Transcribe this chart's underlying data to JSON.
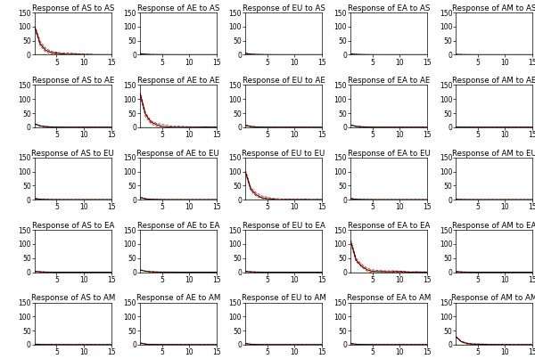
{
  "regions": [
    "AS",
    "AE",
    "EU",
    "EA",
    "AM"
  ],
  "xlim": [
    1,
    15
  ],
  "ylim": [
    0,
    150
  ],
  "yticks": [
    0,
    50,
    100,
    150
  ],
  "xticks": [
    5,
    10,
    15
  ],
  "background_color": "#ffffff",
  "line_color_main": "#000000",
  "line_color_upper": "#ff0000",
  "line_color_lower": "#ff0000",
  "line_color_zero": "#00bb00",
  "figsize": [
    6.0,
    4.03
  ],
  "dpi": 100,
  "title_fontsize": 6.2,
  "tick_fontsize": 5.5,
  "irf_peaks": {
    "AS_AS": 100,
    "AE_AS": 4,
    "EU_AS": 5,
    "EA_AS": 3,
    "AM_AS": 1,
    "AS_AE": 12,
    "AE_AE": 120,
    "EU_AE": 7,
    "EA_AE": 8,
    "AM_AE": 1,
    "AS_EU": 4,
    "AE_EU": 8,
    "EU_EU": 100,
    "EA_EU": 4,
    "AM_EU": 1,
    "AS_EA": 3,
    "AE_EA": 8,
    "EU_EA": 3,
    "EA_EA": 110,
    "AM_EA": 2,
    "AS_AM": 2,
    "AE_AM": 6,
    "EU_AM": 4,
    "EA_AM": 4,
    "AM_AM": 28
  },
  "decay_fast": 0.35,
  "decay_slow": 0.6
}
